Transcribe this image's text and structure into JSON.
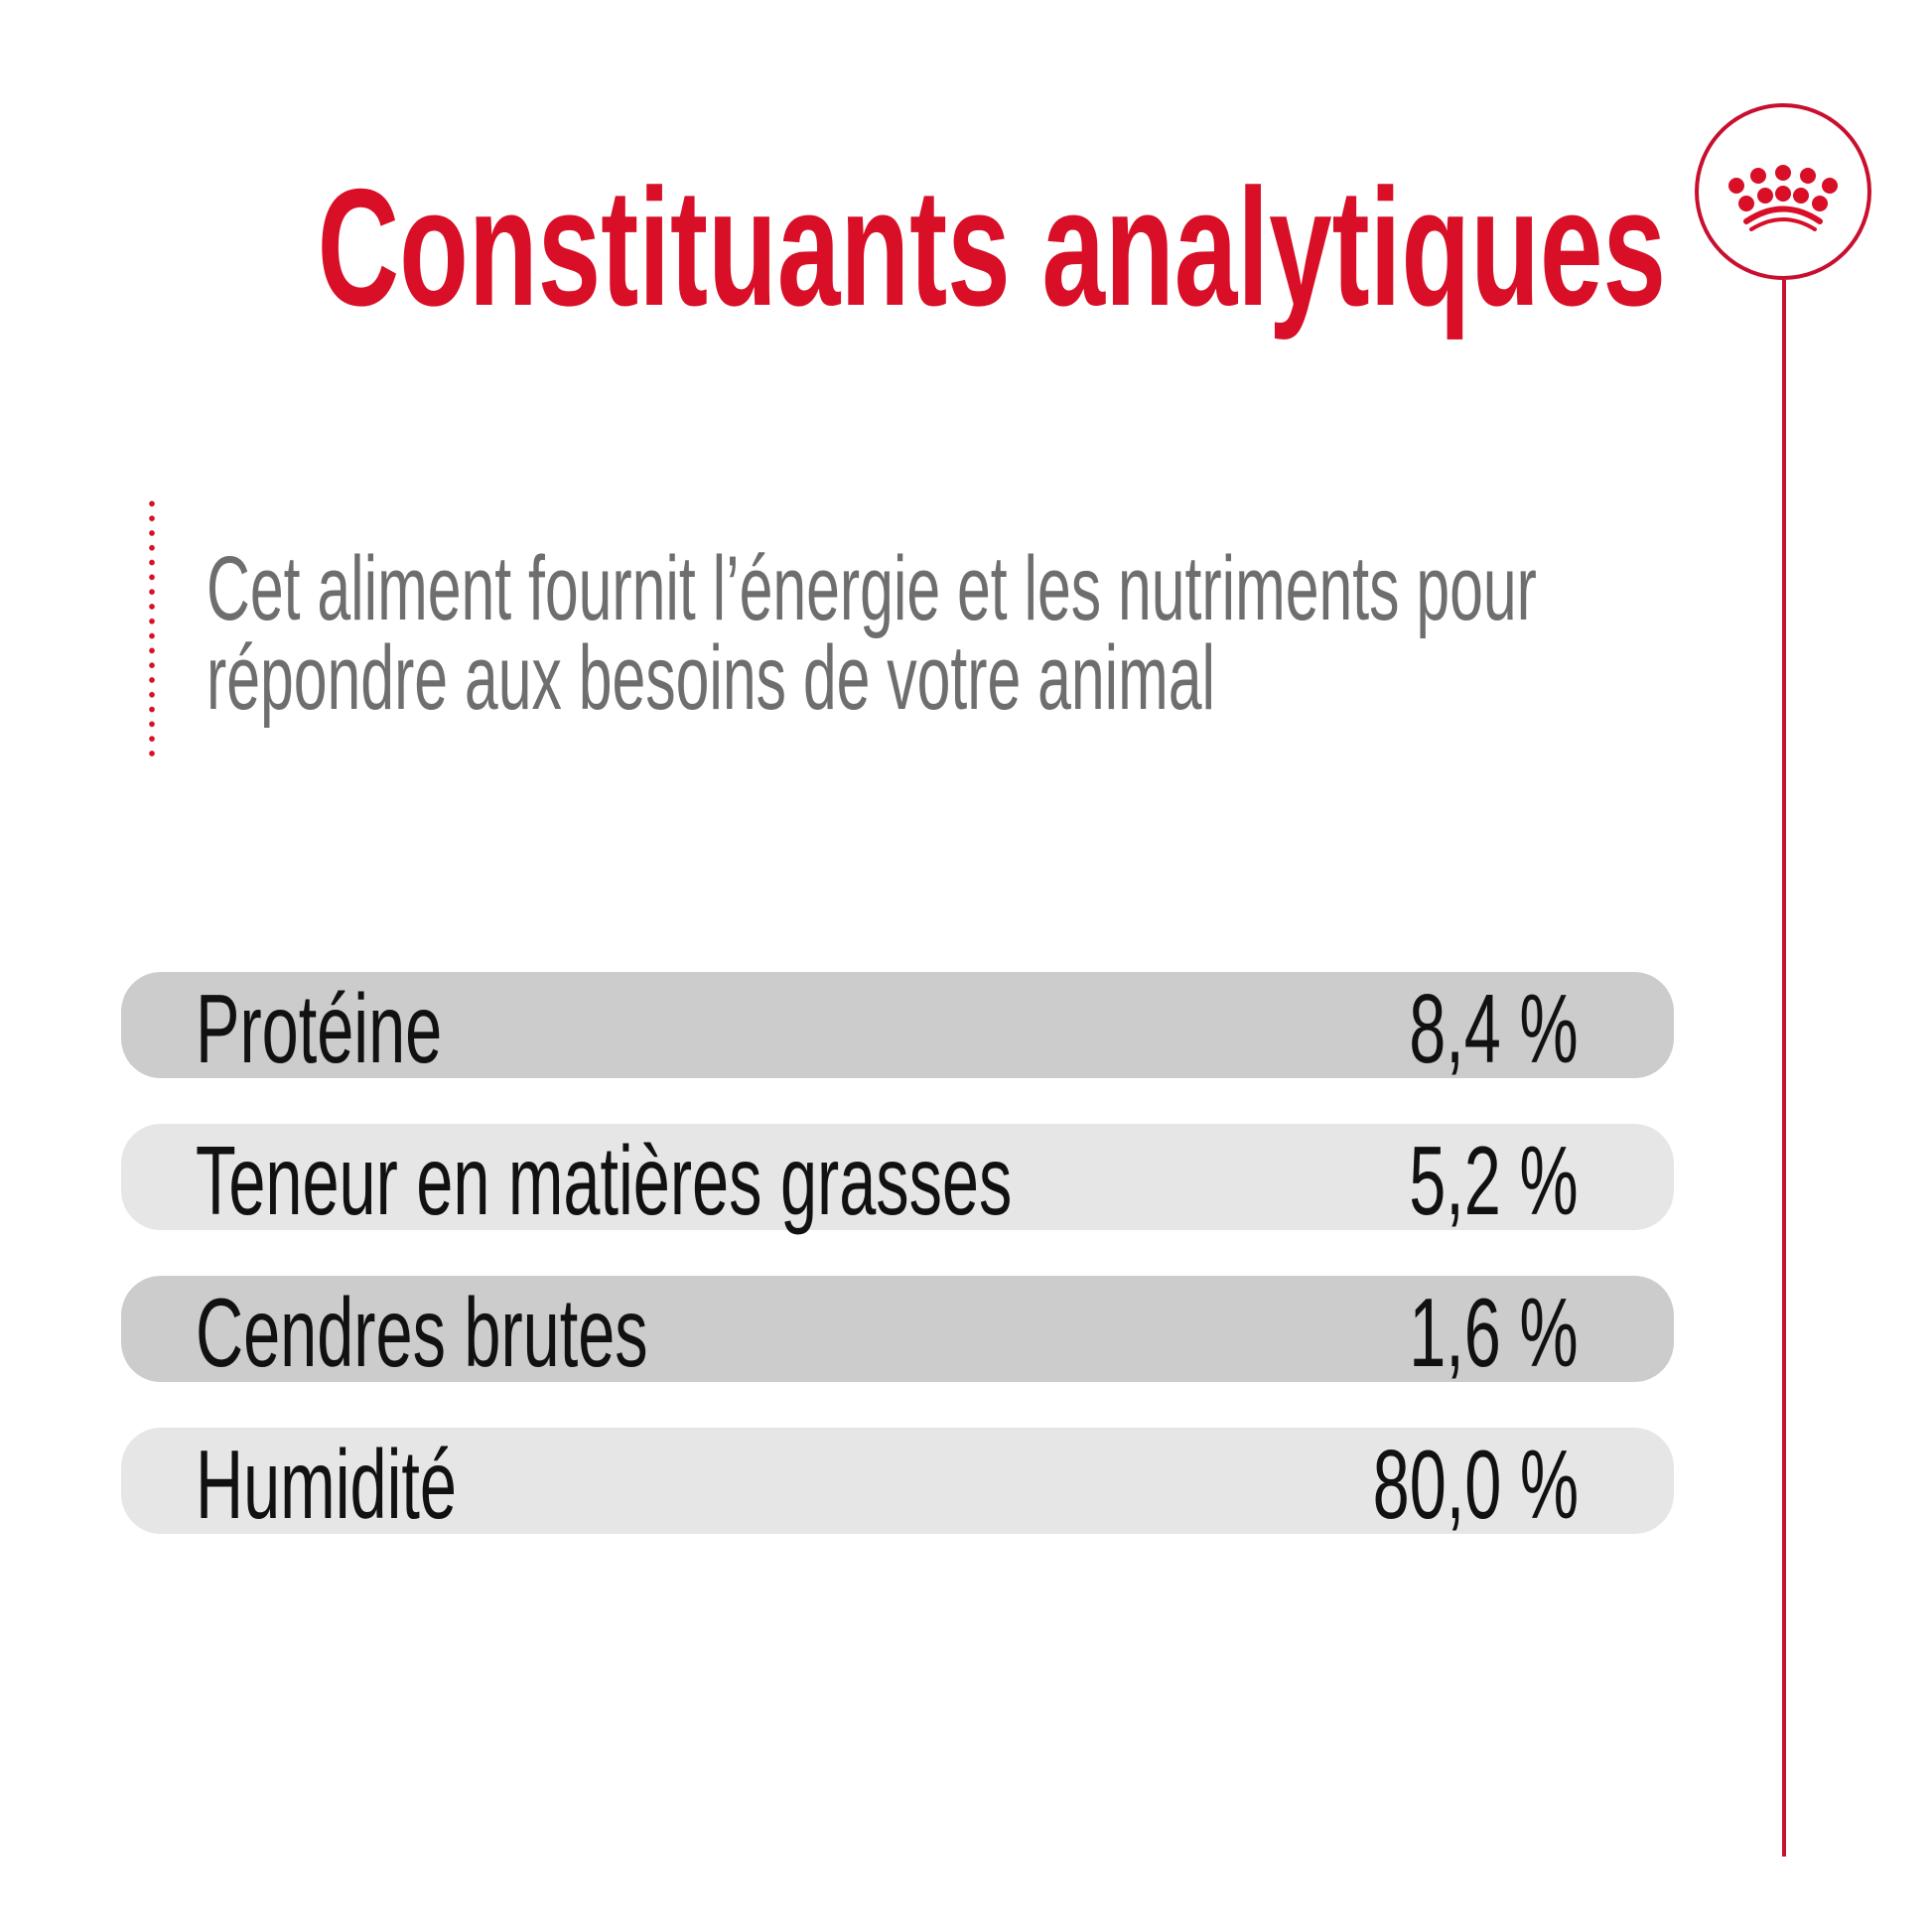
{
  "title": "Constituants analytiques",
  "description": [
    "Cet aliment fournit l’énergie et les nutriments pour",
    "répondre aux besoins de votre animal"
  ],
  "logo": {
    "icon": "royal-crown-icon",
    "color": "#d80f27"
  },
  "rows": [
    {
      "label": "Protéine",
      "value": "8,4 %"
    },
    {
      "label": "Teneur en matières grasses",
      "value": "5,2 %"
    },
    {
      "label": "Cendres brutes",
      "value": "1,6 %"
    },
    {
      "label": "Humidité",
      "value": "80,0 %"
    }
  ],
  "colors": {
    "accent": "#d80f27",
    "row_dark": "#cccccc",
    "row_light": "#e6e6e6",
    "text": "#111111",
    "description": "#6e6e6e"
  }
}
